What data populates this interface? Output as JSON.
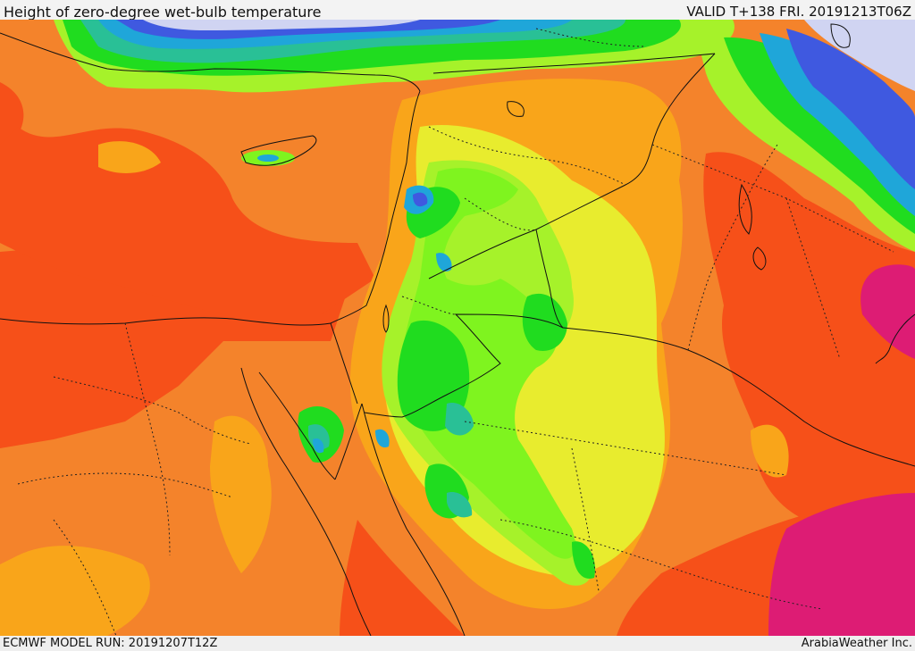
{
  "header": {
    "title": "Height of zero-degree wet-bulb temperature",
    "valid": "VALID T+138 FRI. 20191213T06Z"
  },
  "footer": {
    "model_run": "ECMWF MODEL RUN: 20191207T12Z",
    "credit": "ArabiaWeather Inc."
  },
  "colors": {
    "red_orange": "#f65019",
    "orange": "#f4832b",
    "amber": "#f9a51a",
    "yellow": "#e8ec2e",
    "yellow_green": "#a6f22a",
    "light_green": "#7ff41f",
    "green": "#20dc1f",
    "teal": "#29c096",
    "cyan": "#1fa6d9",
    "blue": "#3f59e0",
    "lavender": "#d0d4f2",
    "magenta": "#dd1c74",
    "sea_band": "#ff5a13"
  }
}
